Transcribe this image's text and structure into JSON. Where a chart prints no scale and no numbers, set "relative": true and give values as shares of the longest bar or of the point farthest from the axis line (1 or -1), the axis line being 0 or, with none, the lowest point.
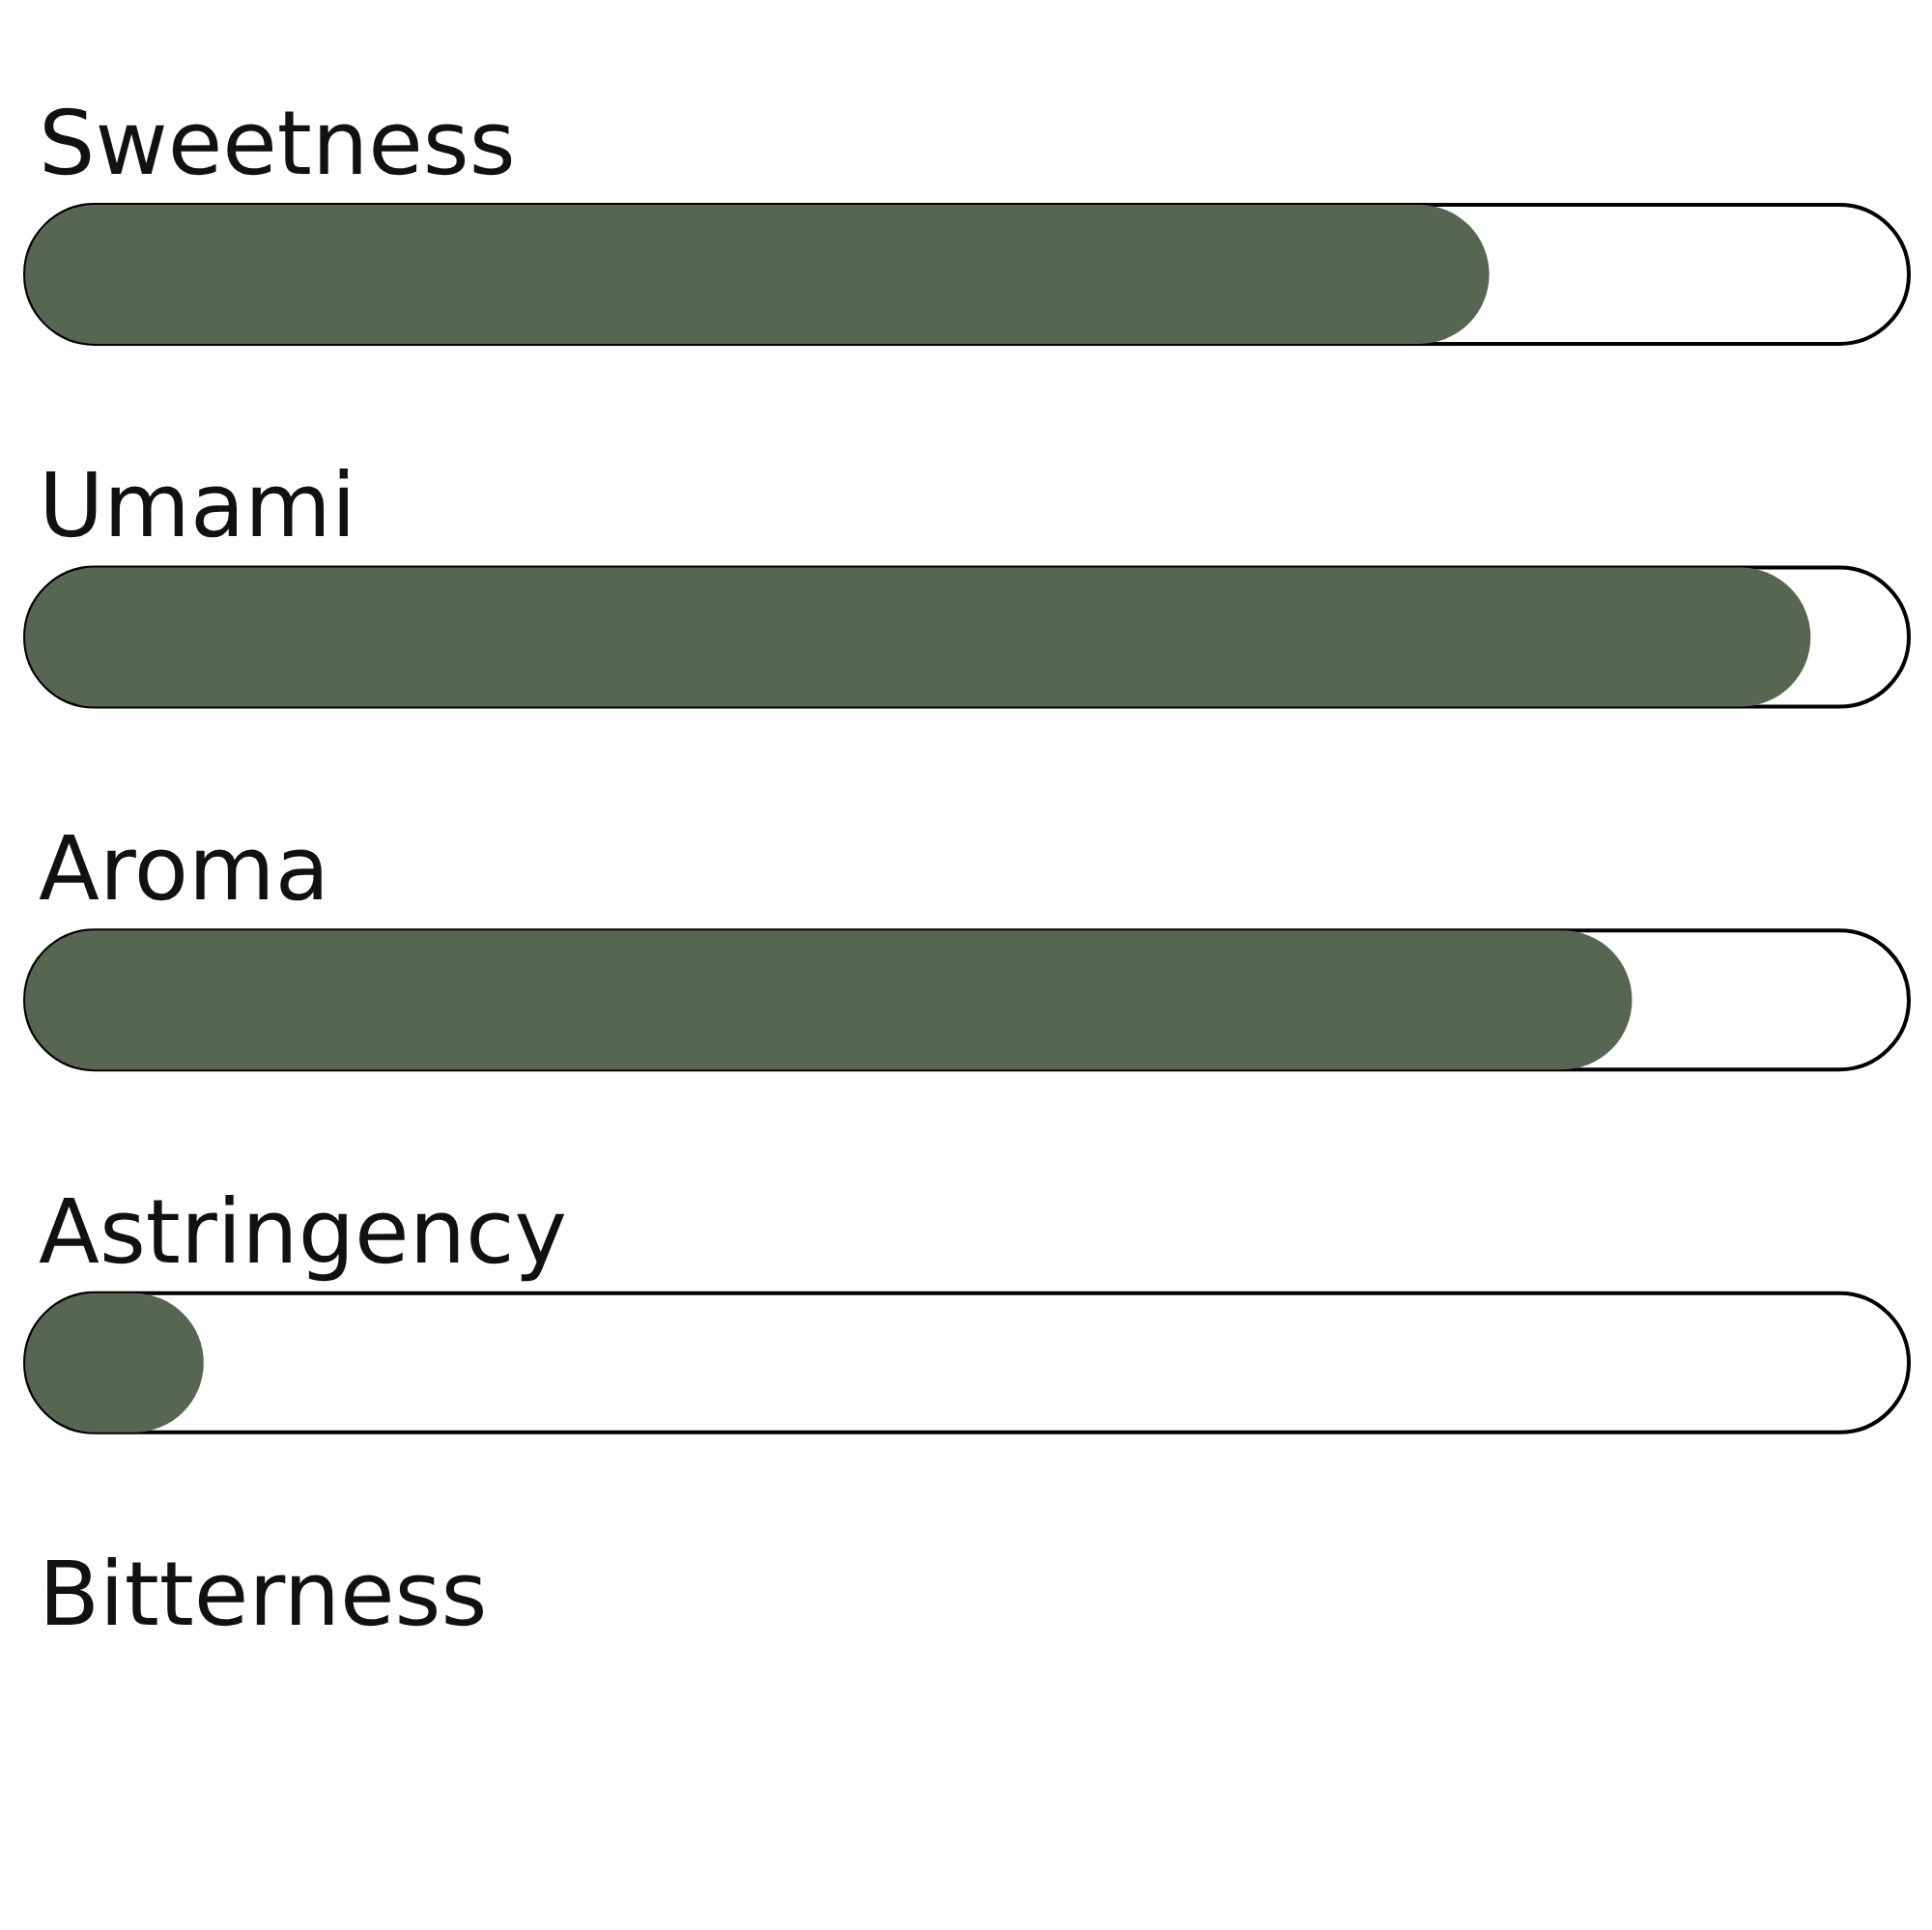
{
  "chart_data": {
    "type": "bar",
    "orientation": "horizontal",
    "relative": true,
    "categories": [
      "Sweetness",
      "Umami",
      "Aroma",
      "Astringency",
      "Bitterness"
    ],
    "values": [
      0.82,
      1,
      0.9,
      0.1,
      0
    ],
    "color": "#566650"
  }
}
